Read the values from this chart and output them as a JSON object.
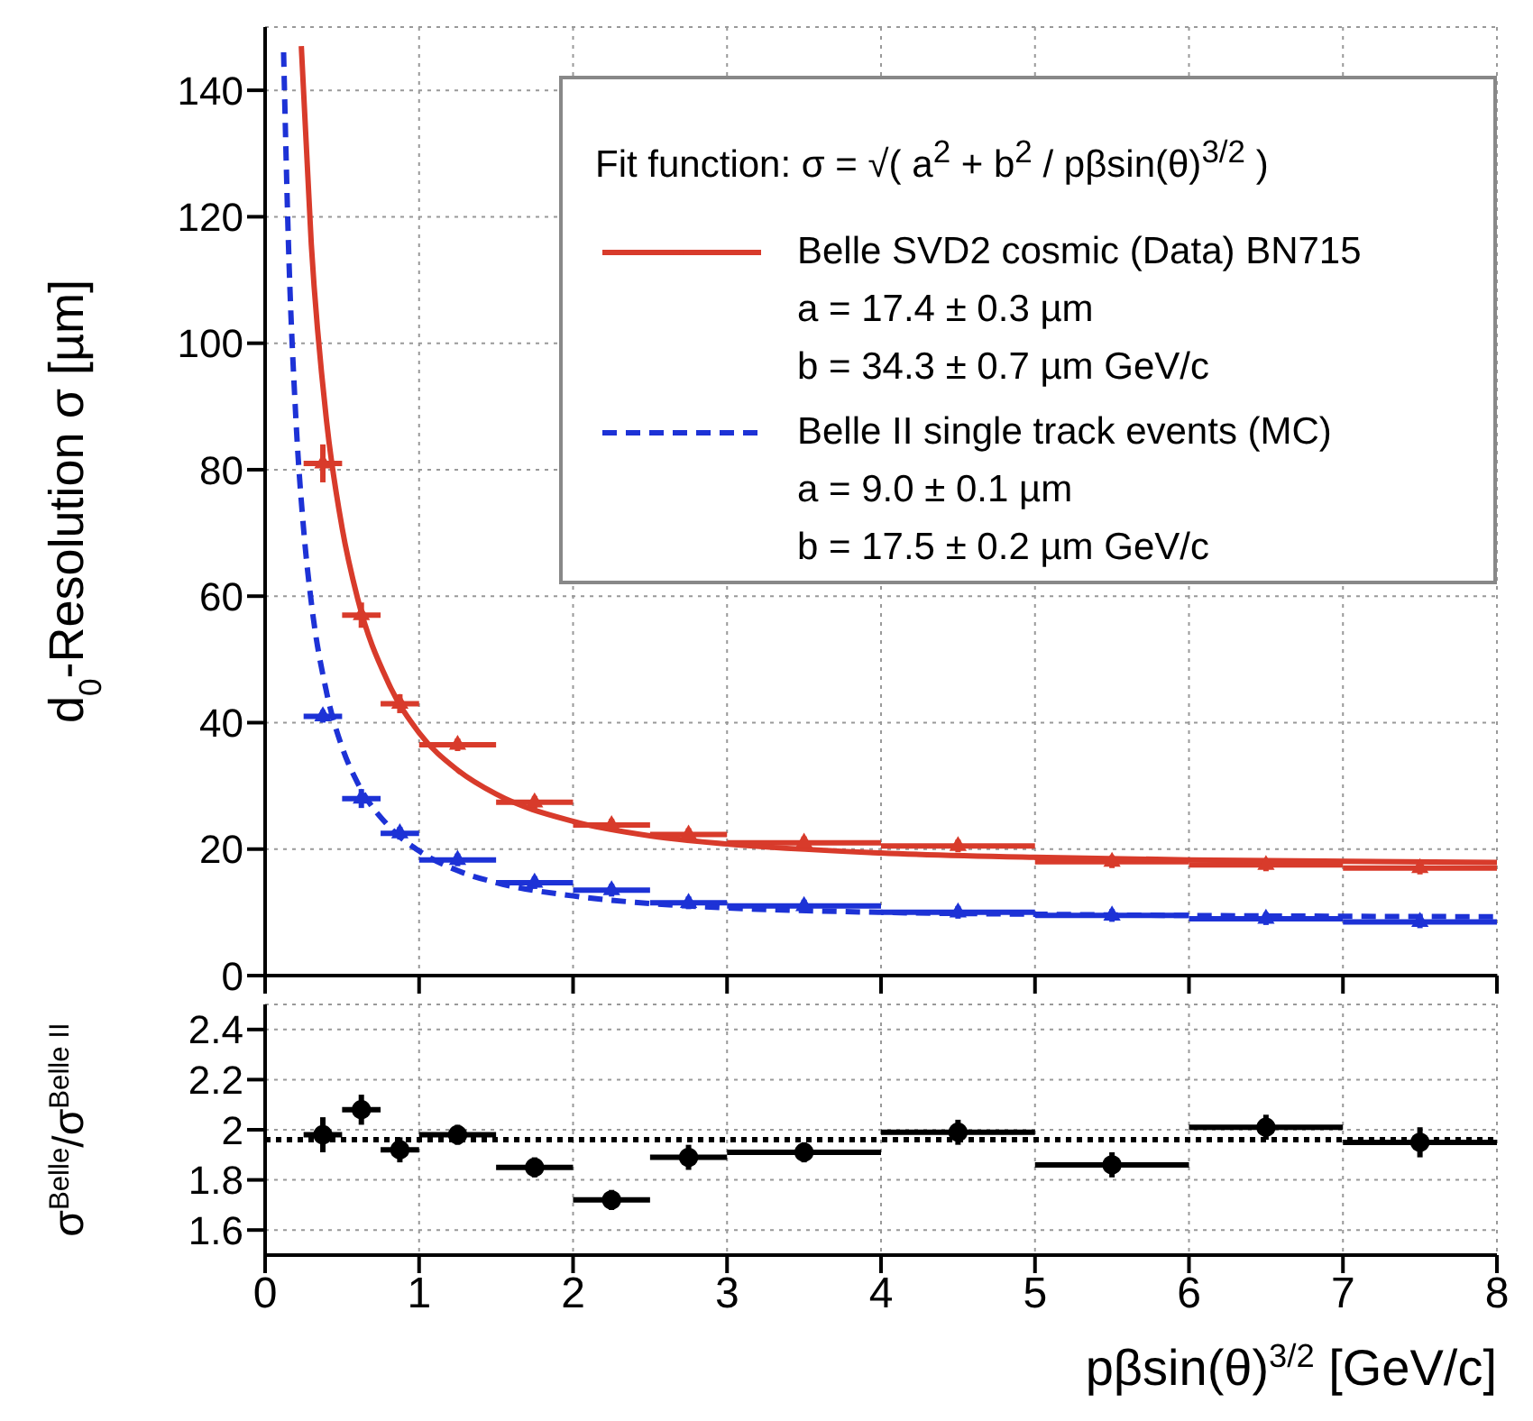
{
  "chart_data": [
    {
      "type": "scatter",
      "ylabel": "d$_{0}$-Resolution σ [µm]",
      "xlim": [
        0,
        8
      ],
      "xticks": [
        0,
        1,
        2,
        3,
        4,
        5,
        6,
        7,
        8
      ],
      "ylim": [
        0,
        150
      ],
      "yticks": [
        0,
        20,
        40,
        60,
        80,
        100,
        120,
        140
      ],
      "tick_labels": "y",
      "grid": true,
      "legend": "top right",
      "annotations": [
        "Fit function:   σ = √( a$^{2}$ + b$^{2}$ / pβsin(θ)$^{3/2}$ )",
        "a =  17.4 ± 0.3 µm",
        "b =  34.3 ± 0.7 µm GeV/c",
        "a =   9.0 ± 0.1 µm",
        "b =  17.5 ± 0.2 µm GeV/c"
      ],
      "series": [
        {
          "color": "#d83b2b",
          "marker": "triangle",
          "x": [
            0.375,
            0.625,
            0.875,
            1.25,
            1.75,
            2.25,
            2.75,
            3.5,
            4.5,
            5.5,
            6.5,
            7.5
          ],
          "values": [
            81,
            57,
            43,
            36.5,
            27.4,
            23.8,
            22.3,
            21,
            20.5,
            18,
            17.5,
            17
          ],
          "xerrors": [
            0.125,
            0.125,
            0.125,
            0.25,
            0.25,
            0.25,
            0.25,
            0.5,
            0.5,
            0.5,
            0.5,
            0.5
          ],
          "errors": [
            3,
            2,
            1.5,
            1,
            1,
            1,
            1,
            1,
            1,
            1,
            1,
            1
          ]
        },
        {
          "color": "#1d32d6",
          "marker": "triangle",
          "x": [
            0.375,
            0.625,
            0.875,
            1.25,
            1.75,
            2.25,
            2.75,
            3.5,
            4.5,
            5.5,
            6.5,
            7.5
          ],
          "values": [
            41,
            28,
            22.5,
            18.3,
            14.7,
            13.5,
            11.5,
            11,
            10,
            9.5,
            9,
            8.5
          ],
          "xerrors": [
            0.125,
            0.125,
            0.125,
            0.25,
            0.25,
            0.25,
            0.25,
            0.5,
            0.5,
            0.5,
            0.5,
            0.5
          ],
          "errors": [
            1,
            1.5,
            1,
            1,
            1,
            1,
            1,
            1,
            1,
            1,
            1,
            1
          ]
        },
        {
          "type": "line",
          "name": "Belle SVD2 cosmic (Data) BN715",
          "color": "#d83b2b",
          "line_style": "solid",
          "marker": "none",
          "x": [
            0.235,
            0.3,
            0.4,
            0.5,
            0.6,
            0.8,
            1,
            1.25,
            1.5,
            2,
            2.5,
            3,
            4,
            5,
            6,
            8
          ],
          "values": [
            147,
            115.6,
            87.5,
            70.8,
            59.7,
            46.3,
            38.4,
            32.5,
            28.7,
            24.4,
            22.1,
            20.8,
            19.4,
            18.7,
            18.3,
            17.9
          ]
        },
        {
          "type": "line",
          "name": "Belle II single track events (MC)",
          "color": "#1d32d6",
          "line_style": "dashed",
          "marker": "none",
          "x": [
            0.12,
            0.15,
            0.2,
            0.25,
            0.3,
            0.4,
            0.5,
            0.6,
            0.8,
            1,
            1.25,
            1.5,
            2,
            2.5,
            3,
            4,
            5,
            6,
            8
          ],
          "values": [
            146,
            117,
            88,
            70.6,
            59,
            44.7,
            36.1,
            30.5,
            23.7,
            19.7,
            16.6,
            14.7,
            12.6,
            11.4,
            10.7,
            10,
            9.7,
            9.5,
            9.3
          ]
        }
      ]
    },
    {
      "type": "scatter",
      "xlabel": "pβsin(θ)$^{3/2}$ [GeV/c]",
      "ylabel": "σ$^{Belle}$/σ$^{Belle II}$",
      "xlim": [
        0,
        8
      ],
      "xticks": [
        0,
        1,
        2,
        3,
        4,
        5,
        6,
        7,
        8
      ],
      "ylim": [
        1.5,
        2.5
      ],
      "yticks": [
        1.6,
        1.8,
        2,
        2.2,
        2.4
      ],
      "grid": true,
      "ref_lines": [
        {
          "axis": "y",
          "value": 1.96,
          "color": "#000000",
          "line_style": "dotted"
        }
      ],
      "series": [
        {
          "color": "#000000",
          "marker": "circle",
          "x": [
            0.375,
            0.625,
            0.875,
            1.25,
            1.75,
            2.25,
            2.75,
            3.5,
            4.5,
            5.5,
            6.5,
            7.5
          ],
          "values": [
            1.98,
            2.08,
            1.92,
            1.98,
            1.85,
            1.72,
            1.89,
            1.91,
            1.99,
            1.86,
            2.01,
            1.95
          ],
          "xerrors": [
            0.125,
            0.125,
            0.125,
            0.25,
            0.25,
            0.25,
            0.25,
            0.5,
            0.5,
            0.5,
            0.5,
            0.5
          ],
          "errors": [
            0.07,
            0.06,
            0.05,
            0.04,
            0.04,
            0.04,
            0.05,
            0.04,
            0.05,
            0.05,
            0.05,
            0.06
          ]
        }
      ]
    }
  ]
}
